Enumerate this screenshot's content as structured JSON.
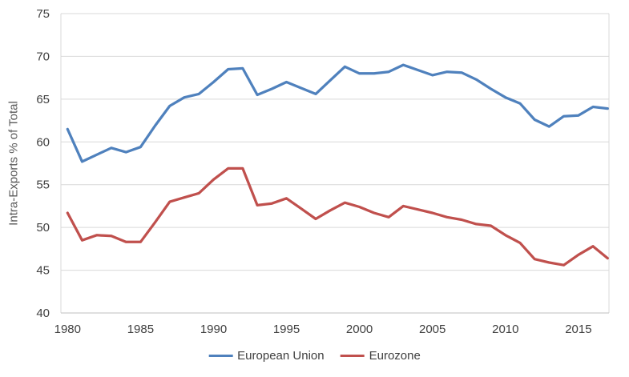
{
  "chart_data": {
    "type": "line",
    "title": "",
    "xlabel": "",
    "ylabel": "Intra-Exports % of Total",
    "ylim": [
      40,
      75
    ],
    "yticks": [
      40,
      45,
      50,
      55,
      60,
      65,
      70,
      75
    ],
    "xticks": [
      1980,
      1985,
      1990,
      1995,
      2000,
      2005,
      2010,
      2015
    ],
    "grid": "horizontal",
    "legend_position": "bottom",
    "x": [
      1980,
      1981,
      1982,
      1983,
      1984,
      1985,
      1986,
      1987,
      1988,
      1989,
      1990,
      1991,
      1992,
      1993,
      1994,
      1995,
      1996,
      1997,
      1998,
      1999,
      2000,
      2001,
      2002,
      2003,
      2004,
      2005,
      2006,
      2007,
      2008,
      2009,
      2010,
      2011,
      2012,
      2013,
      2014,
      2015,
      2016,
      2017
    ],
    "series": [
      {
        "name": "European Union",
        "color": "#4F81BD",
        "values": [
          61.5,
          57.7,
          58.5,
          59.3,
          58.8,
          59.4,
          61.9,
          64.2,
          65.2,
          65.6,
          67.0,
          68.5,
          68.6,
          65.5,
          66.2,
          67.0,
          66.3,
          65.6,
          67.2,
          68.8,
          68.0,
          68.0,
          68.2,
          69.0,
          68.4,
          67.8,
          68.2,
          68.1,
          67.3,
          66.2,
          65.2,
          64.5,
          62.6,
          61.8,
          63.0,
          63.1,
          64.1,
          63.9
        ]
      },
      {
        "name": "Eurozone",
        "color": "#C0504D",
        "values": [
          51.7,
          48.5,
          49.1,
          49.0,
          48.3,
          48.3,
          50.6,
          53.0,
          53.5,
          54.0,
          55.6,
          56.9,
          56.9,
          52.6,
          52.8,
          53.4,
          52.2,
          51.0,
          52.0,
          52.9,
          52.4,
          51.7,
          51.2,
          52.5,
          52.1,
          51.7,
          51.2,
          50.9,
          50.4,
          50.2,
          49.1,
          48.2,
          46.3,
          45.9,
          45.6,
          46.8,
          47.8,
          46.4
        ]
      }
    ]
  },
  "colors": {
    "gridline": "#D9D9D9",
    "axis_line": "#BFBFBF",
    "tick_label": "#404040",
    "axis_title": "#595959",
    "background": "#FFFFFF"
  },
  "legend": {
    "items": [
      {
        "label": "European Union",
        "color": "#4F81BD"
      },
      {
        "label": "Eurozone",
        "color": "#C0504D"
      }
    ]
  }
}
